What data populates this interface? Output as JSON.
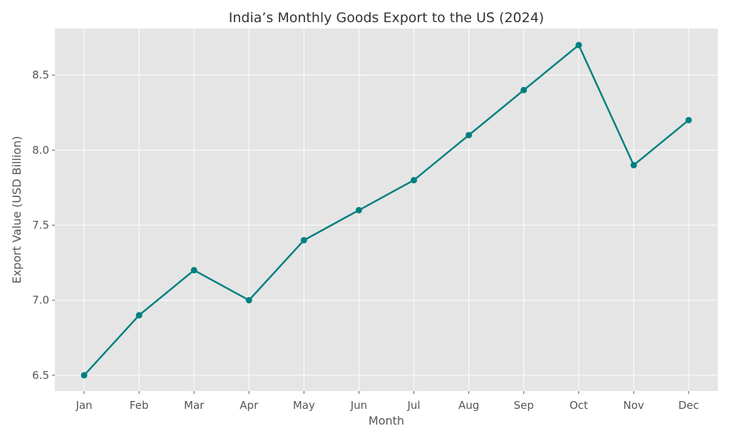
{
  "chart_data": {
    "type": "line",
    "title": "India’s Monthly Goods Export to the US (2024)",
    "xlabel": "Month",
    "ylabel": "Export Value (USD Billion)",
    "categories": [
      "Jan",
      "Feb",
      "Mar",
      "Apr",
      "May",
      "Jun",
      "Jul",
      "Aug",
      "Sep",
      "Oct",
      "Nov",
      "Dec"
    ],
    "values": [
      6.5,
      6.9,
      7.2,
      7.0,
      7.4,
      7.6,
      7.8,
      8.1,
      8.4,
      8.7,
      7.9,
      8.2
    ],
    "yticks": [
      "6.5",
      "7.0",
      "7.5",
      "8.0",
      "8.5"
    ],
    "ylim": [
      6.395,
      8.81
    ],
    "grid": true,
    "marker": "circle",
    "colors": {
      "line": "#008080",
      "background": "#e5e5e5",
      "grid": "#ffffff"
    }
  }
}
